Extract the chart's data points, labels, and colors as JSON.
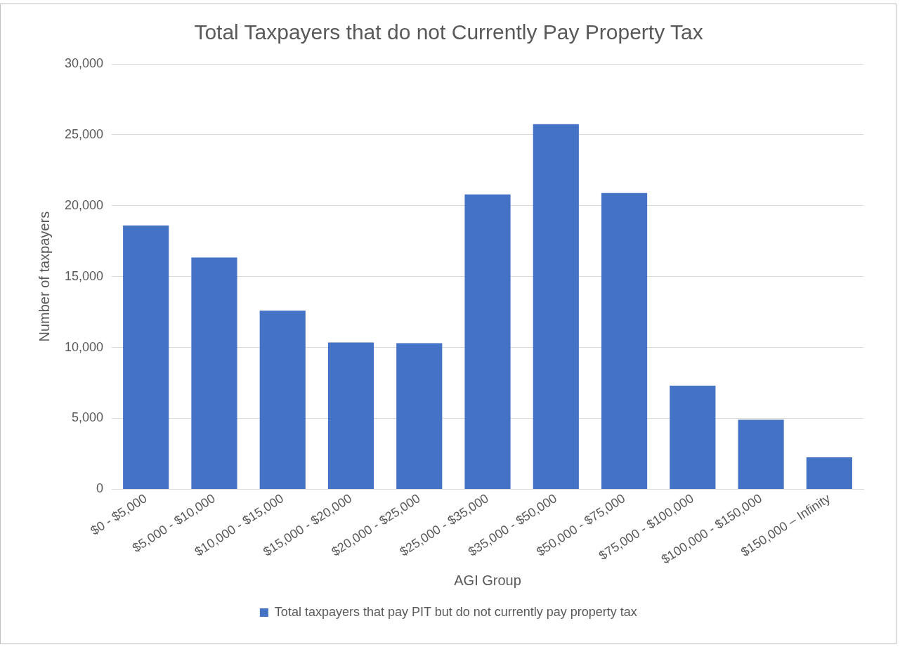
{
  "chart_data": {
    "type": "bar",
    "title": "Total Taxpayers that do not Currently Pay Property Tax",
    "xlabel": "AGI Group",
    "ylabel": "Number of taxpayers",
    "categories": [
      "$0 - $5,000",
      "$5,000 - $10,000",
      "$10,000 - $15,000",
      "$15,000 - $20,000",
      "$20,000 - $25,000",
      "$25,000 - $35,000",
      "$35,000 - $50,000",
      "$50,000 - $75,000",
      "$75,000 - $100,000",
      "$100,000 - $150,000",
      "$150,000 – Infinity"
    ],
    "series": [
      {
        "name": "Total taxpayers that pay PIT but do not currently pay property tax",
        "color": "#4472c4",
        "values": [
          18600,
          16350,
          12600,
          10350,
          10300,
          20800,
          25750,
          20900,
          7300,
          4900,
          2250
        ]
      }
    ],
    "ylim": [
      0,
      30000
    ],
    "yticks": [
      0,
      {
        "value": 5000,
        "label": "5,000"
      },
      {
        "value": 10000,
        "label": "10,000"
      },
      {
        "value": 15000,
        "label": "15,000"
      },
      {
        "value": 20000,
        "label": "20,000"
      },
      {
        "value": 25000,
        "label": "25,000"
      },
      {
        "value": 30000,
        "label": "30,000"
      }
    ],
    "grid": "y",
    "legend": "bottom"
  }
}
